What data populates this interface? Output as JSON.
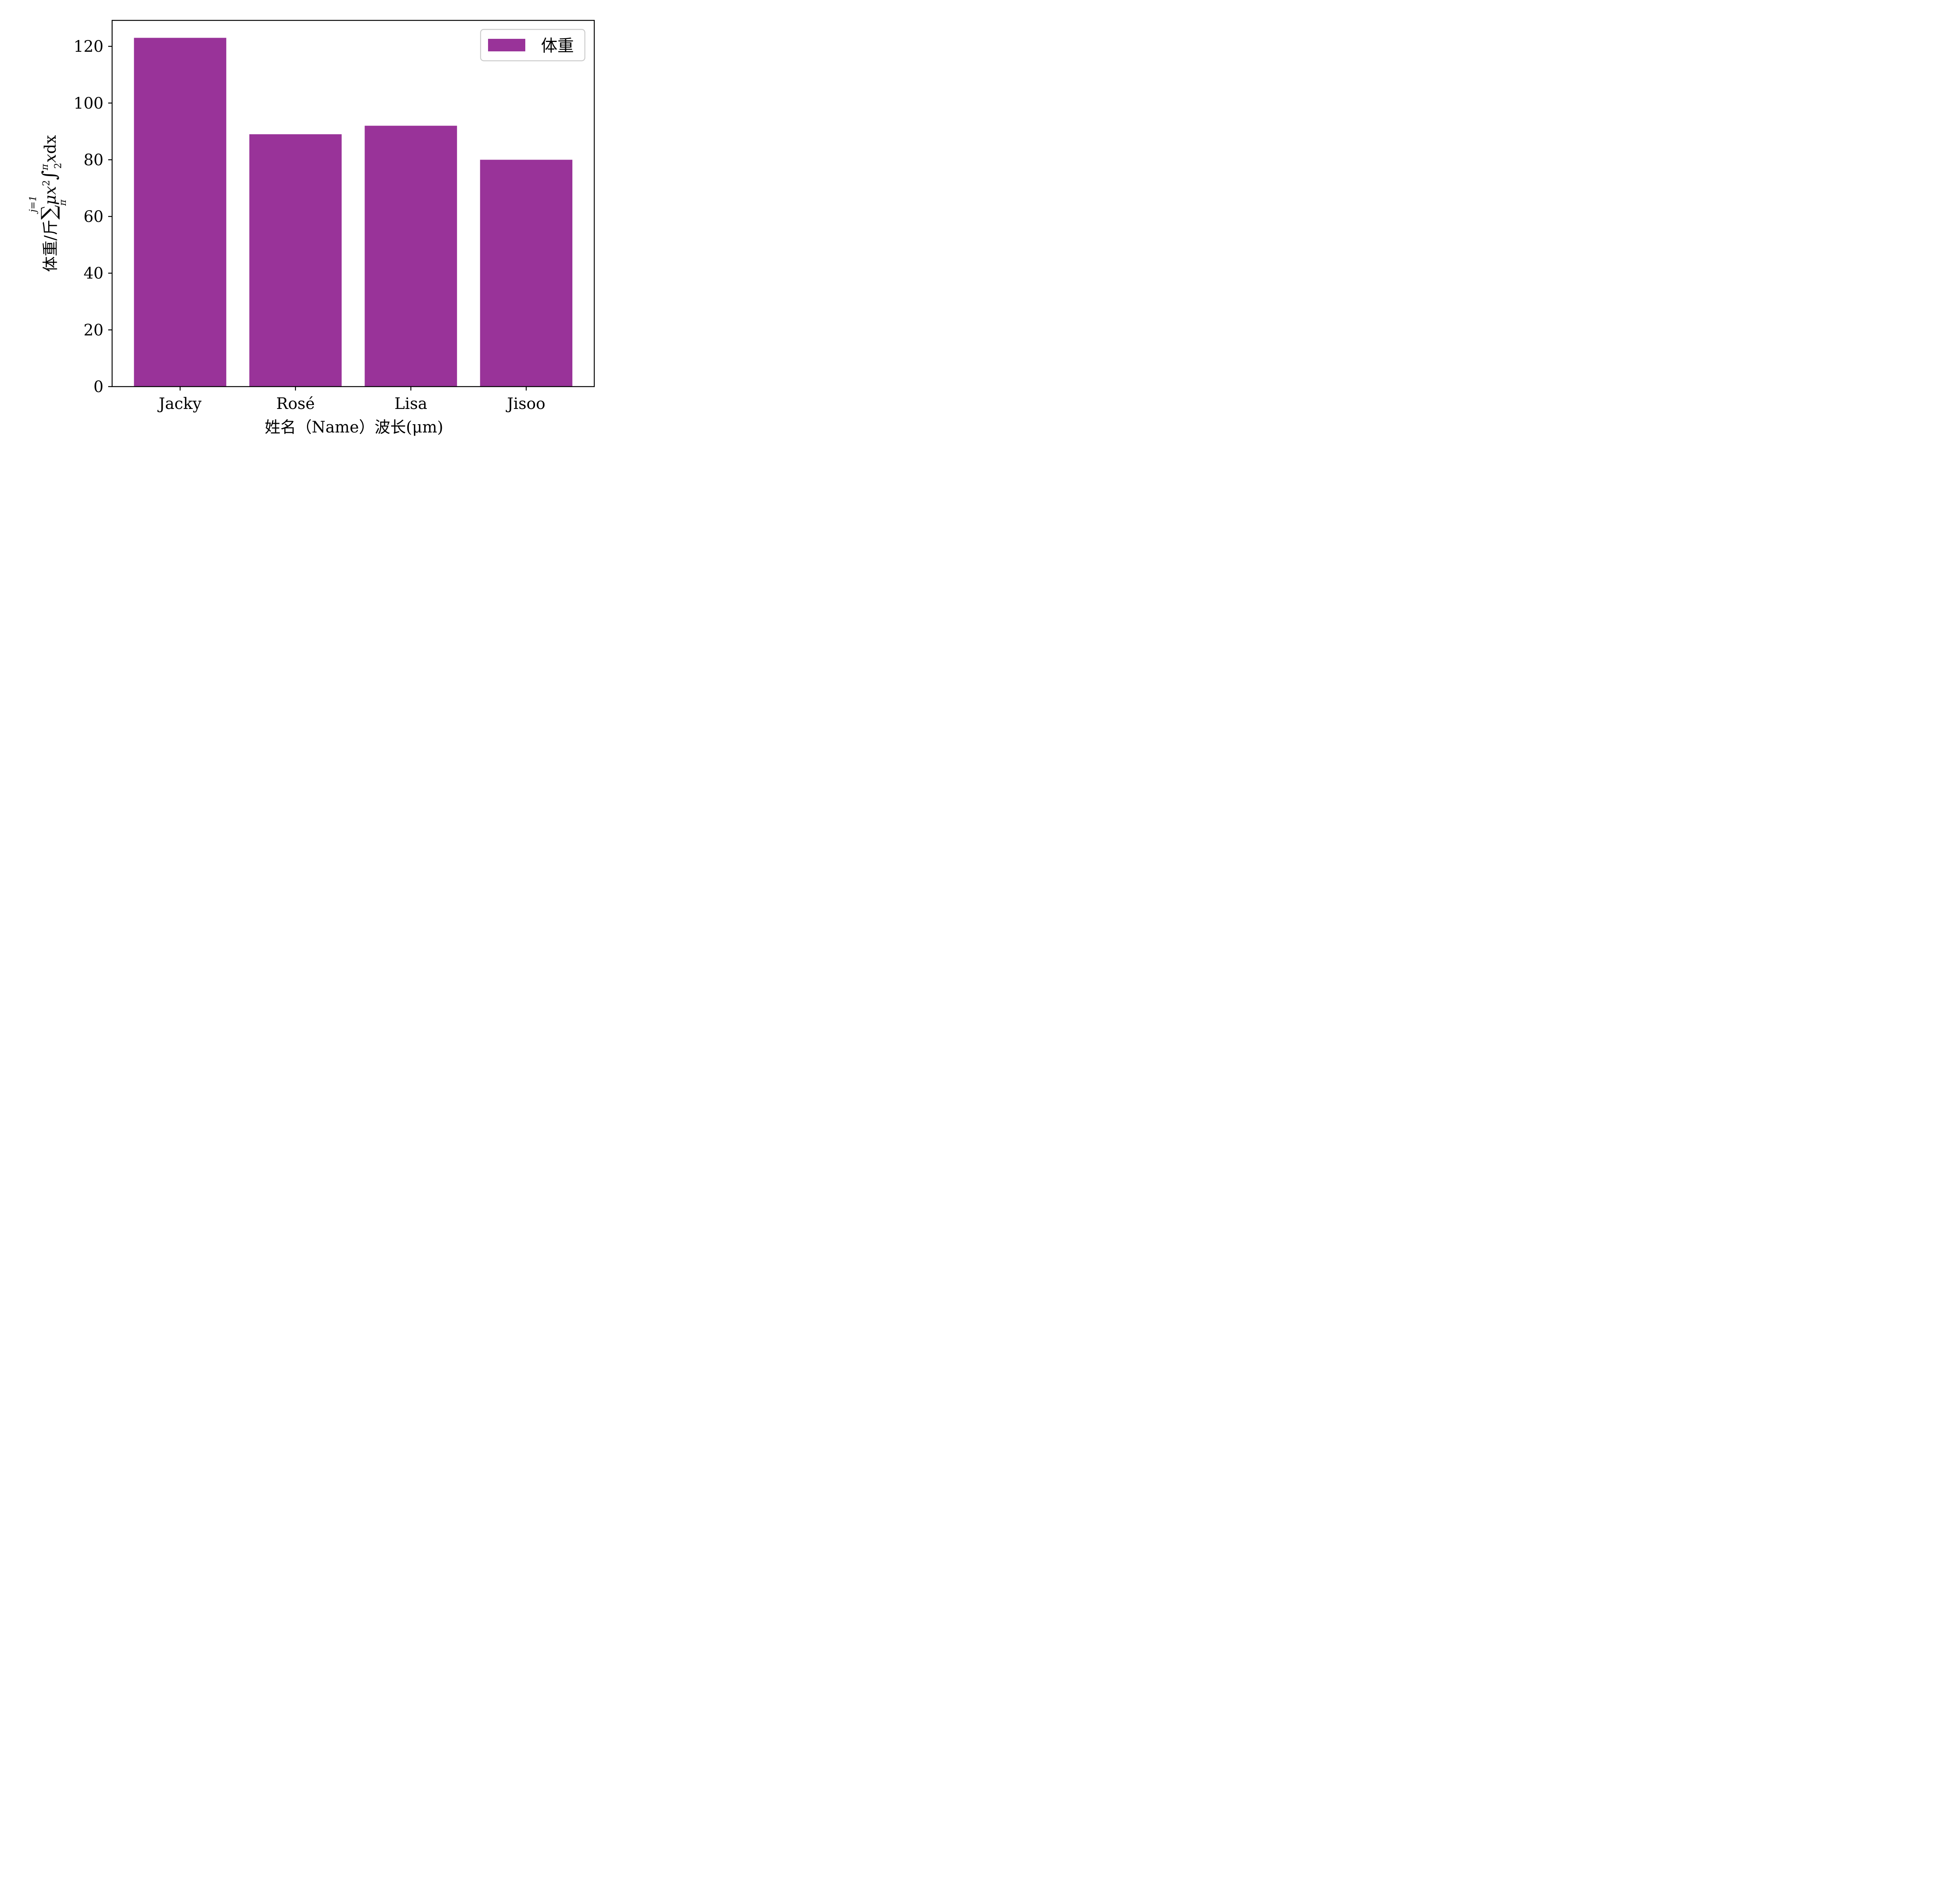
{
  "chart_data": {
    "type": "bar",
    "categories": [
      "Jacky",
      "Rosé",
      "Lisa",
      "Jisoo"
    ],
    "series": [
      {
        "name": "体重",
        "values": [
          123,
          89,
          92,
          80
        ],
        "color": "#993399"
      }
    ],
    "title": "",
    "xlabel": "姓名（Name）波长(μm)",
    "ylabel": {
      "prefix": "体重/斤",
      "sum_sup": "j=1",
      "sum_symbol": "∑",
      "sum_sub": "π",
      "mu_x": "μx",
      "x_exp": "2",
      "integral": "∫",
      "int_sup": "π",
      "int_sub": "2",
      "var_x": "x",
      "suffix": "dx"
    },
    "yticks": [
      0,
      20,
      40,
      60,
      80,
      100,
      120
    ],
    "ylim": [
      0,
      129.15
    ],
    "grid": false,
    "legend_position": "top-right"
  }
}
